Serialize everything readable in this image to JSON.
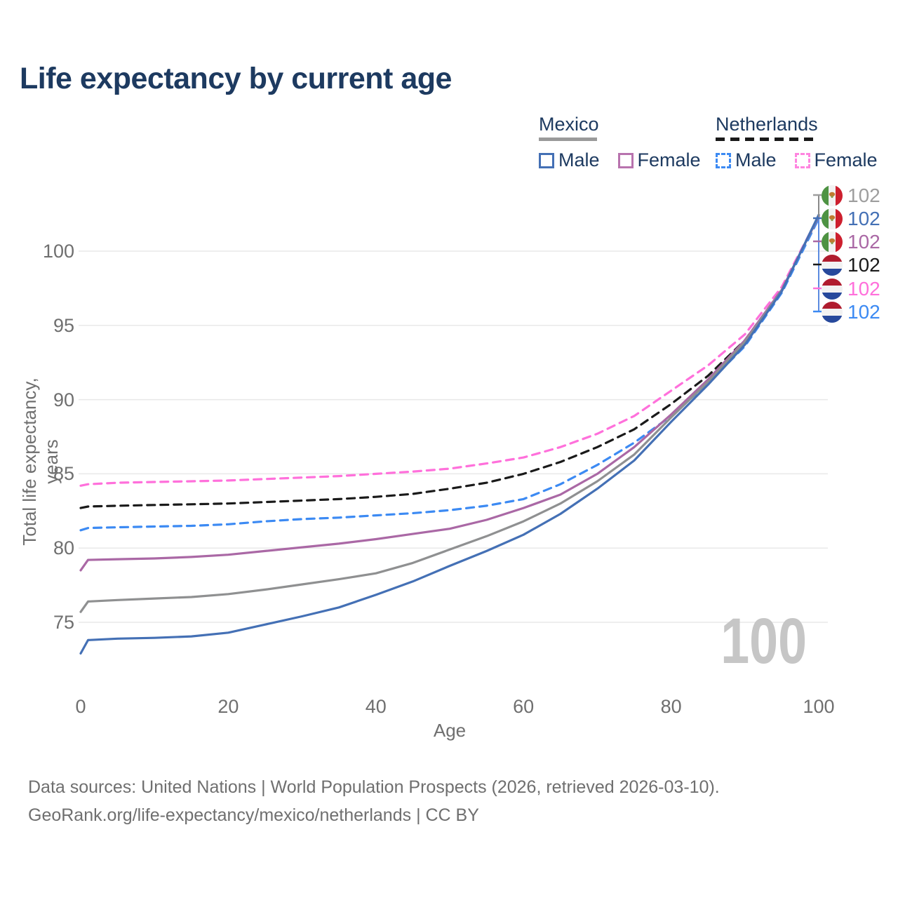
{
  "title": "Life expectancy by current age",
  "watermark_age": "100",
  "colors": {
    "title_navy": "#1d3a60",
    "axis_gray": "#6f6f6f",
    "grid_gray": "#e9e9e9",
    "watermark_gray": "#c6c6c6",
    "mexico_underline": "#9a9a9a",
    "netherlands_underline": "#1a1a1a",
    "leader_gray": "#8a8a8a",
    "leader_blue": "#5b8bе0"
  },
  "legend": {
    "groups": [
      {
        "id": "mexico",
        "label": "Mexico",
        "underline_style": "solid",
        "underline_color": "#9a9a9a",
        "items": [
          {
            "id": "mexico-male",
            "label": "Male",
            "color": "#4470b5",
            "style": "solid"
          },
          {
            "id": "mexico-female",
            "label": "Female",
            "color": "#b873ae",
            "style": "solid"
          }
        ]
      },
      {
        "id": "netherlands",
        "label": "Netherlands",
        "underline_style": "dashed",
        "underline_color": "#1a1a1a",
        "items": [
          {
            "id": "netherlands-male",
            "label": "Male",
            "color": "#3c8af3",
            "style": "dashed"
          },
          {
            "id": "netherlands-female",
            "label": "Female",
            "color": "#ff85e0",
            "style": "dashed"
          }
        ]
      }
    ]
  },
  "end_labels": [
    {
      "flag": "mexico",
      "value": "102",
      "color": "#9e9e9e",
      "series": "Mexico Both sexes"
    },
    {
      "flag": "mexico",
      "value": "102",
      "color": "#4470b5",
      "series": "Mexico Male"
    },
    {
      "flag": "mexico",
      "value": "102",
      "color": "#aa68a5",
      "series": "Mexico Female"
    },
    {
      "flag": "netherlands",
      "value": "102",
      "color": "#1a1a1a",
      "series": "Netherlands Both sexes"
    },
    {
      "flag": "netherlands",
      "value": "102",
      "color": "#ff70db",
      "series": "Netherlands Female"
    },
    {
      "flag": "netherlands",
      "value": "102",
      "color": "#3c8af3",
      "series": "Netherlands Male"
    }
  ],
  "flag_colors": {
    "mexico": {
      "left": "#4e9343",
      "mid": "#f2f2f2",
      "right": "#cd1f2e",
      "emblem": "#c07a30"
    },
    "netherlands": {
      "top": "#b01c2e",
      "mid": "#f2f2f2",
      "bottom": "#27499c"
    }
  },
  "chart_data": {
    "type": "line",
    "title": "Life expectancy by current age",
    "xlabel": "Age",
    "ylabel": "Total life expectancy, years",
    "xlim": [
      0,
      100
    ],
    "ylim": [
      72,
      103
    ],
    "xticks": [
      0,
      20,
      40,
      60,
      80,
      100
    ],
    "yticks": [
      75,
      80,
      85,
      90,
      95,
      100
    ],
    "grid": "horizontal-only",
    "legend_position": "top-right",
    "x": [
      0,
      1,
      5,
      10,
      15,
      20,
      25,
      30,
      35,
      40,
      45,
      50,
      55,
      60,
      65,
      70,
      75,
      80,
      85,
      90,
      95,
      100
    ],
    "series": [
      {
        "name": "Netherlands Female",
        "country": "Netherlands",
        "sex": "female",
        "style": "dashed",
        "color": "#ff70db",
        "values": [
          84.2,
          84.3,
          84.4,
          84.45,
          84.5,
          84.55,
          84.65,
          84.75,
          84.85,
          85.0,
          85.15,
          85.35,
          85.7,
          86.1,
          86.8,
          87.7,
          88.9,
          90.6,
          92.3,
          94.4,
          97.6,
          102.35
        ]
      },
      {
        "name": "Netherlands Both sexes",
        "country": "Netherlands",
        "sex": "both",
        "style": "dashed",
        "color": "#1a1a1a",
        "values": [
          82.7,
          82.8,
          82.85,
          82.9,
          82.95,
          83.0,
          83.1,
          83.2,
          83.3,
          83.45,
          83.65,
          84.0,
          84.4,
          85.0,
          85.8,
          86.8,
          88.0,
          89.7,
          91.6,
          94.0,
          97.4,
          102.3
        ]
      },
      {
        "name": "Netherlands Male",
        "country": "Netherlands",
        "sex": "male",
        "style": "dashed",
        "color": "#3c8af3",
        "values": [
          81.2,
          81.35,
          81.4,
          81.45,
          81.5,
          81.6,
          81.8,
          81.95,
          82.05,
          82.2,
          82.35,
          82.55,
          82.85,
          83.3,
          84.3,
          85.6,
          87.1,
          88.9,
          91.1,
          93.6,
          97.2,
          102.2
        ]
      },
      {
        "name": "Mexico Female",
        "country": "Mexico",
        "sex": "female",
        "style": "solid",
        "color": "#aa68a5",
        "values": [
          78.5,
          79.2,
          79.25,
          79.3,
          79.4,
          79.55,
          79.8,
          80.05,
          80.3,
          80.6,
          80.95,
          81.3,
          81.9,
          82.7,
          83.6,
          85.0,
          86.8,
          89.0,
          91.35,
          94.0,
          97.4,
          102.35
        ]
      },
      {
        "name": "Mexico Both sexes",
        "country": "Mexico",
        "sex": "both",
        "style": "solid",
        "color": "#8f9091",
        "values": [
          75.7,
          76.4,
          76.5,
          76.6,
          76.7,
          76.9,
          77.2,
          77.55,
          77.9,
          78.3,
          79.0,
          79.9,
          80.8,
          81.8,
          83.0,
          84.5,
          86.3,
          88.8,
          91.2,
          93.9,
          97.35,
          102.4
        ]
      },
      {
        "name": "Mexico Male",
        "country": "Mexico",
        "sex": "male",
        "style": "solid",
        "color": "#4470b5",
        "values": [
          72.9,
          73.8,
          73.9,
          73.95,
          74.05,
          74.3,
          74.85,
          75.4,
          76.0,
          76.85,
          77.75,
          78.8,
          79.8,
          80.9,
          82.3,
          84.0,
          85.9,
          88.5,
          91.0,
          93.7,
          97.3,
          102.45
        ]
      }
    ]
  },
  "axes": {
    "ylabel": "Total life expectancy, years",
    "xlabel": "Age"
  },
  "footer": {
    "line1": "Data sources: United Nations | World Population Prospects (2026, retrieved 2026-03-10).",
    "line2": "GeoRank.org/life-expectancy/mexico/netherlands | CC BY"
  }
}
